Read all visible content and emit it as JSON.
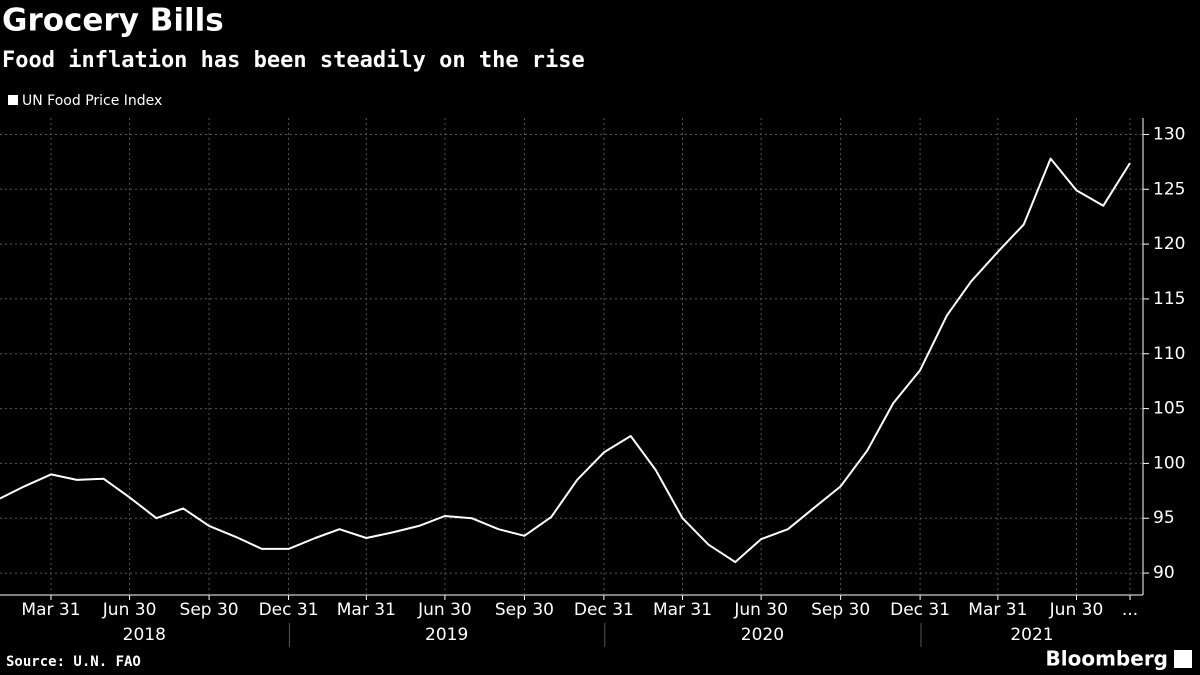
{
  "chart_data": {
    "type": "line",
    "title": "Grocery Bills",
    "subtitle": "Food inflation has been steadily on the rise",
    "source": "Source: U.N. FAO",
    "brand": "Bloomberg",
    "x": [
      "2018-01-31",
      "2018-02-28",
      "2018-03-31",
      "2018-04-30",
      "2018-05-31",
      "2018-06-30",
      "2018-07-31",
      "2018-08-31",
      "2018-09-30",
      "2018-10-31",
      "2018-11-30",
      "2018-12-31",
      "2019-01-31",
      "2019-02-28",
      "2019-03-31",
      "2019-04-30",
      "2019-05-31",
      "2019-06-30",
      "2019-07-31",
      "2019-08-31",
      "2019-09-30",
      "2019-10-31",
      "2019-11-30",
      "2019-12-31",
      "2020-01-31",
      "2020-02-29",
      "2020-03-31",
      "2020-04-30",
      "2020-05-31",
      "2020-06-30",
      "2020-07-31",
      "2020-08-31",
      "2020-09-30",
      "2020-10-31",
      "2020-11-30",
      "2020-12-31",
      "2021-01-31",
      "2021-02-28",
      "2021-03-31",
      "2021-04-30",
      "2021-05-31",
      "2021-06-30",
      "2021-07-31",
      "2021-08-31"
    ],
    "series": [
      {
        "name": "UN Food Price Index",
        "color": "#ffffff",
        "values": [
          96.8,
          97.9,
          99.0,
          98.5,
          98.6,
          96.9,
          95.0,
          95.9,
          94.3,
          93.3,
          92.2,
          92.2,
          93.2,
          94.0,
          93.2,
          93.7,
          94.3,
          95.2,
          95.0,
          94.0,
          93.4,
          95.1,
          98.5,
          101.0,
          102.5,
          99.4,
          95.0,
          92.6,
          91.0,
          93.1,
          94.0,
          96.0,
          97.9,
          101.2,
          105.5,
          108.5,
          113.5,
          116.6,
          119.3,
          121.8,
          127.8,
          124.9,
          123.5,
          127.4
        ]
      }
    ],
    "xlim": [
      "2018-01-31",
      "2021-09-15"
    ],
    "xticks": [
      {
        "value": "2018-03-31",
        "label": "Mar 31"
      },
      {
        "value": "2018-06-30",
        "label": "Jun 30"
      },
      {
        "value": "2018-09-30",
        "label": "Sep 30"
      },
      {
        "value": "2018-12-31",
        "label": "Dec 31"
      },
      {
        "value": "2019-03-31",
        "label": "Mar 31"
      },
      {
        "value": "2019-06-30",
        "label": "Jun 30"
      },
      {
        "value": "2019-09-30",
        "label": "Sep 30"
      },
      {
        "value": "2019-12-31",
        "label": "Dec 31"
      },
      {
        "value": "2020-03-31",
        "label": "Mar 31"
      },
      {
        "value": "2020-06-30",
        "label": "Jun 30"
      },
      {
        "value": "2020-09-30",
        "label": "Sep 30"
      },
      {
        "value": "2020-12-31",
        "label": "Dec 31"
      },
      {
        "value": "2021-03-31",
        "label": "Mar 31"
      },
      {
        "value": "2021-06-30",
        "label": "Jun 30"
      },
      {
        "value": "2021-08-31",
        "label": "..."
      }
    ],
    "years": [
      "2018",
      "2019",
      "2020",
      "2021"
    ],
    "ylim": [
      88,
      131.5
    ],
    "yticks": [
      90,
      95,
      100,
      105,
      110,
      115,
      120,
      125,
      130
    ],
    "grid": true
  }
}
